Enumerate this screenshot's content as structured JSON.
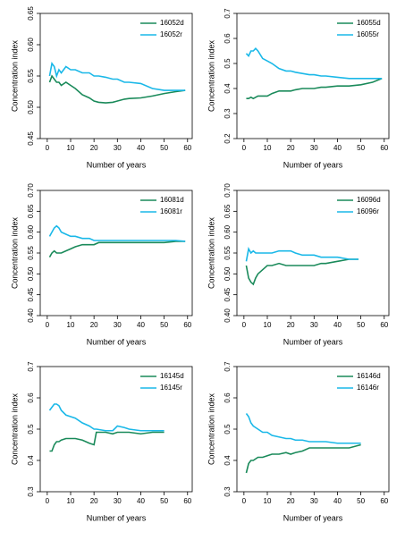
{
  "chart_data": [
    {
      "type": "line",
      "xlabel": "Number of years",
      "ylabel": "Concentration index",
      "xlim": [
        -3,
        62
      ],
      "xticks": [
        0,
        10,
        20,
        30,
        40,
        50,
        60
      ],
      "ylim": [
        0.45,
        0.65
      ],
      "yticks": [
        0.45,
        {
          "value": 0.5,
          "label": "0.50"
        },
        0.55,
        {
          "value": 0.6,
          "label": "0.60"
        },
        0.65
      ],
      "legend": "top-right",
      "x": [
        1,
        2,
        3,
        4,
        5,
        6,
        8,
        10,
        12,
        15,
        18,
        20,
        22,
        25,
        28,
        30,
        33,
        35,
        40,
        45,
        50,
        55,
        59
      ],
      "series": [
        {
          "name": "16052d",
          "color": "#1a8a5a",
          "values": [
            0.54,
            0.55,
            0.545,
            0.54,
            0.54,
            0.535,
            0.54,
            0.535,
            0.53,
            0.52,
            0.515,
            0.51,
            0.508,
            0.507,
            0.508,
            0.51,
            0.513,
            0.514,
            0.515,
            0.518,
            0.522,
            0.525,
            0.527
          ]
        },
        {
          "name": "16052r",
          "color": "#1ab8e8",
          "values": [
            0.55,
            0.57,
            0.565,
            0.55,
            0.56,
            0.555,
            0.565,
            0.56,
            0.56,
            0.555,
            0.555,
            0.55,
            0.55,
            0.548,
            0.545,
            0.545,
            0.54,
            0.54,
            0.538,
            0.53,
            0.527,
            0.527,
            0.527
          ]
        }
      ]
    },
    {
      "type": "line",
      "xlabel": "Number of years",
      "ylabel": "Concentration index",
      "xlim": [
        -3,
        62
      ],
      "xticks": [
        0,
        10,
        20,
        30,
        40,
        50,
        60
      ],
      "ylim": [
        0.2,
        0.7
      ],
      "yticks": [
        0.2,
        0.3,
        0.4,
        0.5,
        0.6,
        0.7
      ],
      "legend": "top-right",
      "x": [
        1,
        2,
        3,
        4,
        5,
        6,
        8,
        10,
        12,
        15,
        18,
        20,
        22,
        25,
        28,
        30,
        33,
        35,
        40,
        45,
        50,
        55,
        59
      ],
      "series": [
        {
          "name": "16055d",
          "color": "#1a8a5a",
          "values": [
            0.36,
            0.36,
            0.365,
            0.36,
            0.365,
            0.37,
            0.37,
            0.37,
            0.38,
            0.39,
            0.39,
            0.39,
            0.395,
            0.4,
            0.4,
            0.4,
            0.405,
            0.405,
            0.41,
            0.41,
            0.415,
            0.425,
            0.44
          ]
        },
        {
          "name": "16055r",
          "color": "#1ab8e8",
          "values": [
            0.54,
            0.53,
            0.55,
            0.55,
            0.56,
            0.55,
            0.52,
            0.51,
            0.5,
            0.48,
            0.47,
            0.47,
            0.465,
            0.46,
            0.455,
            0.455,
            0.45,
            0.45,
            0.445,
            0.44,
            0.44,
            0.44,
            0.44
          ]
        }
      ]
    },
    {
      "type": "line",
      "xlabel": "Number of years",
      "ylabel": "Concentration index",
      "xlim": [
        -3,
        62
      ],
      "xticks": [
        0,
        10,
        20,
        30,
        40,
        50,
        60
      ],
      "ylim": [
        0.4,
        0.7
      ],
      "yticks": [
        {
          "value": 0.4,
          "label": "0.40"
        },
        0.45,
        {
          "value": 0.5,
          "label": "0.50"
        },
        0.55,
        {
          "value": 0.6,
          "label": "0.60"
        },
        0.65,
        {
          "value": 0.7,
          "label": "0.70"
        }
      ],
      "legend": "top-right",
      "x": [
        1,
        2,
        3,
        4,
        5,
        6,
        8,
        10,
        12,
        15,
        18,
        20,
        22,
        25,
        28,
        30,
        33,
        35,
        40,
        45,
        50,
        55,
        59
      ],
      "series": [
        {
          "name": "16081d",
          "color": "#1a8a5a",
          "values": [
            0.54,
            0.55,
            0.555,
            0.55,
            0.55,
            0.55,
            0.555,
            0.56,
            0.565,
            0.57,
            0.57,
            0.57,
            0.575,
            0.575,
            0.575,
            0.575,
            0.575,
            0.575,
            0.575,
            0.575,
            0.575,
            0.578,
            0.578
          ]
        },
        {
          "name": "16081r",
          "color": "#1ab8e8",
          "values": [
            0.59,
            0.6,
            0.61,
            0.615,
            0.61,
            0.6,
            0.595,
            0.59,
            0.59,
            0.585,
            0.585,
            0.58,
            0.58,
            0.58,
            0.58,
            0.58,
            0.58,
            0.58,
            0.58,
            0.58,
            0.58,
            0.58,
            0.578
          ]
        }
      ]
    },
    {
      "type": "line",
      "xlabel": "Number of years",
      "ylabel": "Concentration index",
      "xlim": [
        -3,
        62
      ],
      "xticks": [
        0,
        10,
        20,
        30,
        40,
        50,
        60
      ],
      "ylim": [
        0.4,
        0.7
      ],
      "yticks": [
        {
          "value": 0.4,
          "label": "0.40"
        },
        0.45,
        {
          "value": 0.5,
          "label": "0.50"
        },
        0.55,
        {
          "value": 0.6,
          "label": "0.60"
        },
        0.65,
        {
          "value": 0.7,
          "label": "0.70"
        }
      ],
      "legend": "top-right",
      "x": [
        1,
        2,
        3,
        4,
        5,
        6,
        8,
        10,
        12,
        15,
        18,
        20,
        22,
        25,
        28,
        30,
        33,
        35,
        40,
        45,
        49
      ],
      "series": [
        {
          "name": "16096d",
          "color": "#1a8a5a",
          "values": [
            0.52,
            0.49,
            0.48,
            0.475,
            0.49,
            0.5,
            0.51,
            0.52,
            0.52,
            0.525,
            0.52,
            0.52,
            0.52,
            0.52,
            0.52,
            0.52,
            0.525,
            0.525,
            0.53,
            0.535,
            0.535
          ]
        },
        {
          "name": "16096r",
          "color": "#1ab8e8",
          "values": [
            0.53,
            0.56,
            0.55,
            0.555,
            0.55,
            0.55,
            0.55,
            0.55,
            0.55,
            0.555,
            0.555,
            0.555,
            0.55,
            0.545,
            0.545,
            0.545,
            0.54,
            0.54,
            0.54,
            0.535,
            0.535
          ]
        }
      ]
    },
    {
      "type": "line",
      "xlabel": "Number of years",
      "ylabel": "Concentration index",
      "xlim": [
        -3,
        62
      ],
      "xticks": [
        0,
        10,
        20,
        30,
        40,
        50,
        60
      ],
      "ylim": [
        0.3,
        0.7
      ],
      "yticks": [
        0.3,
        0.4,
        0.5,
        0.6,
        0.7
      ],
      "legend": "top-right",
      "x": [
        1,
        2,
        3,
        4,
        5,
        6,
        8,
        10,
        12,
        15,
        18,
        20,
        21,
        25,
        28,
        30,
        33,
        35,
        40,
        45,
        50
      ],
      "series": [
        {
          "name": "16145d",
          "color": "#1a8a5a",
          "values": [
            0.43,
            0.43,
            0.45,
            0.46,
            0.46,
            0.465,
            0.47,
            0.47,
            0.47,
            0.465,
            0.455,
            0.45,
            0.49,
            0.49,
            0.485,
            0.49,
            0.49,
            0.49,
            0.485,
            0.49,
            0.49
          ]
        },
        {
          "name": "16145r",
          "color": "#1ab8e8",
          "values": [
            0.56,
            0.57,
            0.58,
            0.58,
            0.575,
            0.56,
            0.545,
            0.54,
            0.535,
            0.52,
            0.51,
            0.5,
            0.5,
            0.495,
            0.495,
            0.51,
            0.505,
            0.5,
            0.495,
            0.495,
            0.495
          ]
        }
      ]
    },
    {
      "type": "line",
      "xlabel": "Number of years",
      "ylabel": "Concentration index",
      "xlim": [
        -3,
        62
      ],
      "xticks": [
        0,
        10,
        20,
        30,
        40,
        50,
        60
      ],
      "ylim": [
        0.3,
        0.7
      ],
      "yticks": [
        0.3,
        0.4,
        0.5,
        0.6,
        0.7
      ],
      "legend": "top-right",
      "x": [
        1,
        2,
        3,
        4,
        5,
        6,
        8,
        10,
        12,
        15,
        18,
        20,
        22,
        25,
        28,
        30,
        33,
        35,
        40,
        45,
        50
      ],
      "series": [
        {
          "name": "16146d",
          "color": "#1a8a5a",
          "values": [
            0.36,
            0.39,
            0.4,
            0.4,
            0.405,
            0.41,
            0.41,
            0.415,
            0.42,
            0.42,
            0.425,
            0.42,
            0.425,
            0.43,
            0.44,
            0.44,
            0.44,
            0.44,
            0.44,
            0.44,
            0.45
          ]
        },
        {
          "name": "16146r",
          "color": "#1ab8e8",
          "values": [
            0.55,
            0.54,
            0.52,
            0.51,
            0.505,
            0.5,
            0.49,
            0.49,
            0.48,
            0.475,
            0.47,
            0.47,
            0.465,
            0.465,
            0.46,
            0.46,
            0.46,
            0.46,
            0.455,
            0.455,
            0.455
          ]
        }
      ]
    }
  ]
}
